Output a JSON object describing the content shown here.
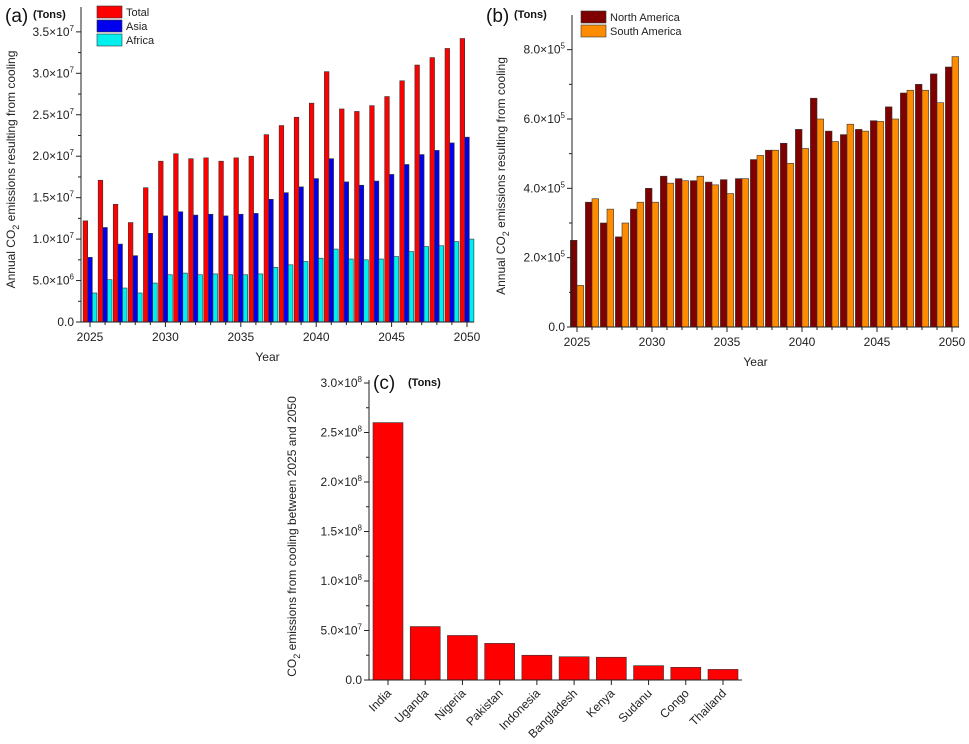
{
  "chart_data": [
    {
      "type": "bar",
      "panel_label": "(a)",
      "unit_label": "(Tons)",
      "xlabel": "Year",
      "ylabel": {
        "pre": "Annual CO",
        "sub": "2",
        "post": " emissions resulting from cooling"
      },
      "x": [
        2025,
        2026,
        2027,
        2028,
        2029,
        2030,
        2031,
        2032,
        2033,
        2034,
        2035,
        2036,
        2037,
        2038,
        2039,
        2040,
        2041,
        2042,
        2043,
        2044,
        2045,
        2046,
        2047,
        2048,
        2049,
        2050
      ],
      "xticks": [
        "2025",
        "2030",
        "2035",
        "2040",
        "2045",
        "2050"
      ],
      "ylim": [
        0,
        38000000
      ],
      "yticks": [
        {
          "v": 0,
          "text": "0.0",
          "sup": ""
        },
        {
          "v": 5000000,
          "text": "5.0×10",
          "sup": "6"
        },
        {
          "v": 10000000,
          "text": "1.0×10",
          "sup": "7"
        },
        {
          "v": 15000000,
          "text": "1.5×10",
          "sup": "7"
        },
        {
          "v": 20000000,
          "text": "2.0×10",
          "sup": "7"
        },
        {
          "v": 25000000,
          "text": "2.5×10",
          "sup": "7"
        },
        {
          "v": 30000000,
          "text": "3.0×10",
          "sup": "7"
        },
        {
          "v": 35000000,
          "text": "3.5×10",
          "sup": "7"
        }
      ],
      "legend_position": "top-left",
      "series": [
        {
          "name": "Total",
          "color": "#ff0000",
          "values": [
            12200000,
            17100000,
            14200000,
            12000000,
            16200000,
            19400000,
            20300000,
            19700000,
            19800000,
            19400000,
            19800000,
            20000000,
            22600000,
            23700000,
            24700000,
            26400000,
            30200000,
            25700000,
            25400000,
            26100000,
            27200000,
            29100000,
            31000000,
            31900000,
            33000000,
            34200000
          ]
        },
        {
          "name": "Asia",
          "color": "#0000ee",
          "values": [
            7800000,
            11400000,
            9400000,
            8000000,
            10700000,
            12800000,
            13300000,
            12900000,
            13000000,
            12800000,
            13000000,
            13100000,
            14800000,
            15600000,
            16300000,
            17300000,
            19700000,
            16900000,
            16500000,
            17000000,
            17800000,
            19000000,
            20200000,
            20700000,
            21600000,
            22300000
          ]
        },
        {
          "name": "Africa",
          "color": "#00f0f0",
          "values": [
            3500000,
            5100000,
            4100000,
            3500000,
            4700000,
            5700000,
            5900000,
            5700000,
            5800000,
            5700000,
            5700000,
            5800000,
            6600000,
            6900000,
            7300000,
            7700000,
            8800000,
            7600000,
            7500000,
            7600000,
            7900000,
            8500000,
            9100000,
            9200000,
            9700000,
            10000000
          ]
        }
      ]
    },
    {
      "type": "bar",
      "panel_label": "(b)",
      "unit_label": "(Tons)",
      "xlabel": "Year",
      "ylabel": {
        "pre": "Annual CO",
        "sub": "2",
        "post": " emissions resulting from cooling"
      },
      "x": [
        2025,
        2026,
        2027,
        2028,
        2029,
        2030,
        2031,
        2032,
        2033,
        2034,
        2035,
        2036,
        2037,
        2038,
        2039,
        2040,
        2041,
        2042,
        2043,
        2044,
        2045,
        2046,
        2047,
        2048,
        2049,
        2050
      ],
      "xticks": [
        "2025",
        "2030",
        "2035",
        "2040",
        "2045",
        "2050"
      ],
      "ylim": [
        0,
        900000
      ],
      "yticks": [
        {
          "v": 0,
          "text": "0.0",
          "sup": ""
        },
        {
          "v": 200000,
          "text": "2.0×10",
          "sup": "5"
        },
        {
          "v": 400000,
          "text": "4.0×10",
          "sup": "5"
        },
        {
          "v": 600000,
          "text": "6.0×10",
          "sup": "5"
        },
        {
          "v": 800000,
          "text": "8.0×10",
          "sup": "5"
        }
      ],
      "legend_position": "top-left",
      "series": [
        {
          "name": "North America",
          "color": "#800000",
          "values": [
            250000,
            360000,
            300000,
            260000,
            340000,
            400000,
            435000,
            428000,
            422000,
            418000,
            425000,
            428000,
            483000,
            510000,
            530000,
            570000,
            660000,
            565000,
            555000,
            570000,
            595000,
            635000,
            675000,
            700000,
            730000,
            750000
          ]
        },
        {
          "name": "South America",
          "color": "#ff8c00",
          "values": [
            120000,
            370000,
            340000,
            300000,
            360000,
            360000,
            415000,
            422000,
            435000,
            410000,
            385000,
            428000,
            495000,
            510000,
            472000,
            515000,
            600000,
            535000,
            585000,
            565000,
            593000,
            600000,
            683000,
            683000,
            647000,
            780000
          ]
        }
      ]
    },
    {
      "type": "bar",
      "panel_label": "(c)",
      "unit_label": "(Tons)",
      "xlabel": "",
      "ylabel": {
        "pre": "CO",
        "sub": "2",
        "post": " emissions from cooling between 2025 and 2050"
      },
      "categories": [
        "India",
        "Uganda",
        "Nigeria",
        "Pakistan",
        "Indonesia",
        "Bangladesh",
        "Kenya",
        "Sudanu",
        "Congo",
        "Thailand"
      ],
      "values": [
        260000000,
        54000000,
        45000000,
        37000000,
        25000000,
        23500000,
        23000000,
        14500000,
        12800000,
        10700000
      ],
      "color": "#ff0000",
      "ylim": [
        0,
        300000000
      ],
      "yticks": [
        {
          "v": 0,
          "text": "0.0",
          "sup": ""
        },
        {
          "v": 50000000,
          "text": "5.0×10",
          "sup": "7"
        },
        {
          "v": 100000000,
          "text": "1.0×10",
          "sup": "8"
        },
        {
          "v": 150000000,
          "text": "1.5×10",
          "sup": "8"
        },
        {
          "v": 200000000,
          "text": "2.0×10",
          "sup": "8"
        },
        {
          "v": 250000000,
          "text": "2.5×10",
          "sup": "8"
        },
        {
          "v": 300000000,
          "text": "3.0×10",
          "sup": "8"
        }
      ]
    }
  ]
}
